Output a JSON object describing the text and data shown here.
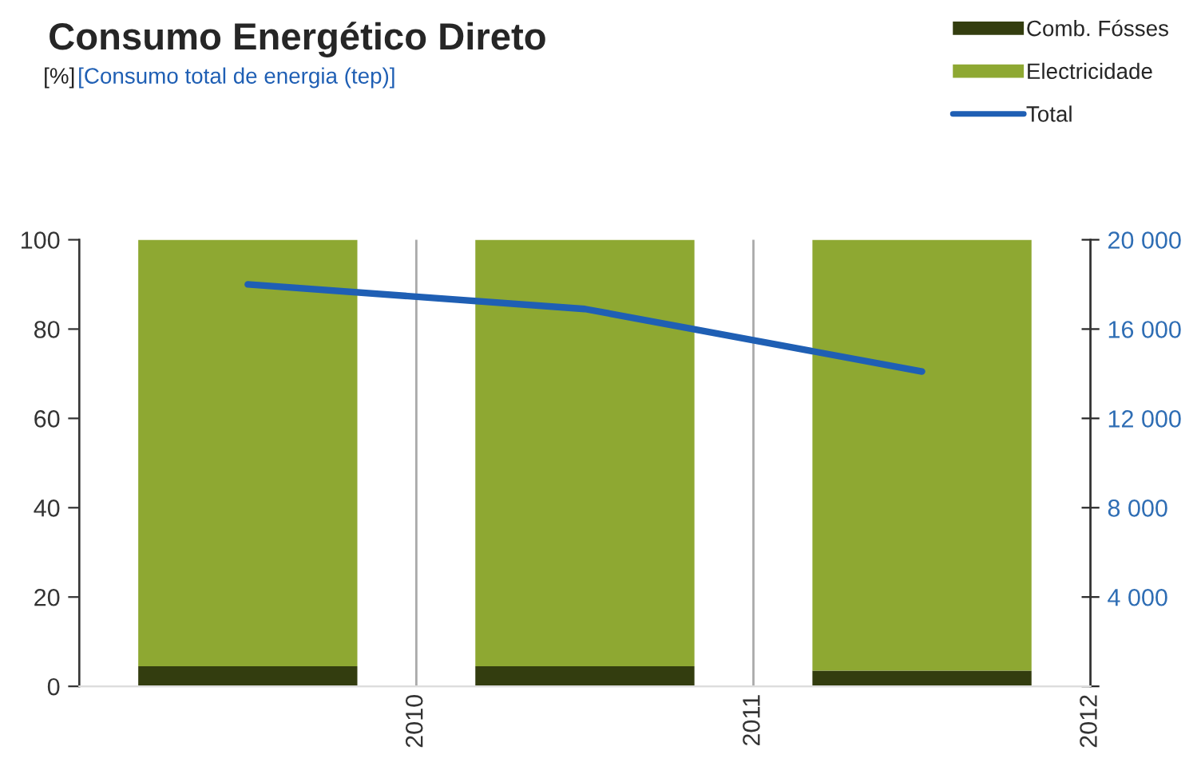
{
  "chart_data": {
    "type": "bar",
    "title": "Consumo Energético Direto",
    "annotations": [
      "[%]",
      "[Consumo total de energia (tep)]"
    ],
    "x": [
      2009.5,
      2010.5,
      2011.5
    ],
    "stacked": true,
    "series": [
      {
        "name": "Comb. Fósses",
        "color": "#333d0f",
        "values": [
          4.5,
          4.5,
          3.5
        ]
      },
      {
        "name": "Electricidade",
        "color": "#8ea832",
        "values": [
          95.5,
          95.5,
          96.5
        ]
      },
      {
        "name": "Total",
        "type": "line",
        "axis": "y2",
        "color": "#1f5fb4",
        "values": [
          18000,
          16900,
          14100
        ]
      }
    ],
    "xlim": [
      2009,
      2012
    ],
    "xticks": [
      2010,
      2011,
      2012
    ],
    "ylim": [
      0,
      100
    ],
    "yticks": [
      0,
      20,
      40,
      60,
      80,
      100
    ],
    "y2lim": [
      0,
      20000
    ],
    "y2ticks": [
      {
        "value": 0,
        "label": null
      },
      {
        "value": 4000,
        "label": "4 000"
      },
      {
        "value": 8000,
        "label": "8 000"
      },
      {
        "value": 12000,
        "label": "12 000"
      },
      {
        "value": 16000,
        "label": "16 000"
      },
      {
        "value": 20000,
        "label": "20 000"
      }
    ],
    "grid": "x",
    "legend": "top right",
    "line_style": "solid",
    "marker": "none"
  }
}
